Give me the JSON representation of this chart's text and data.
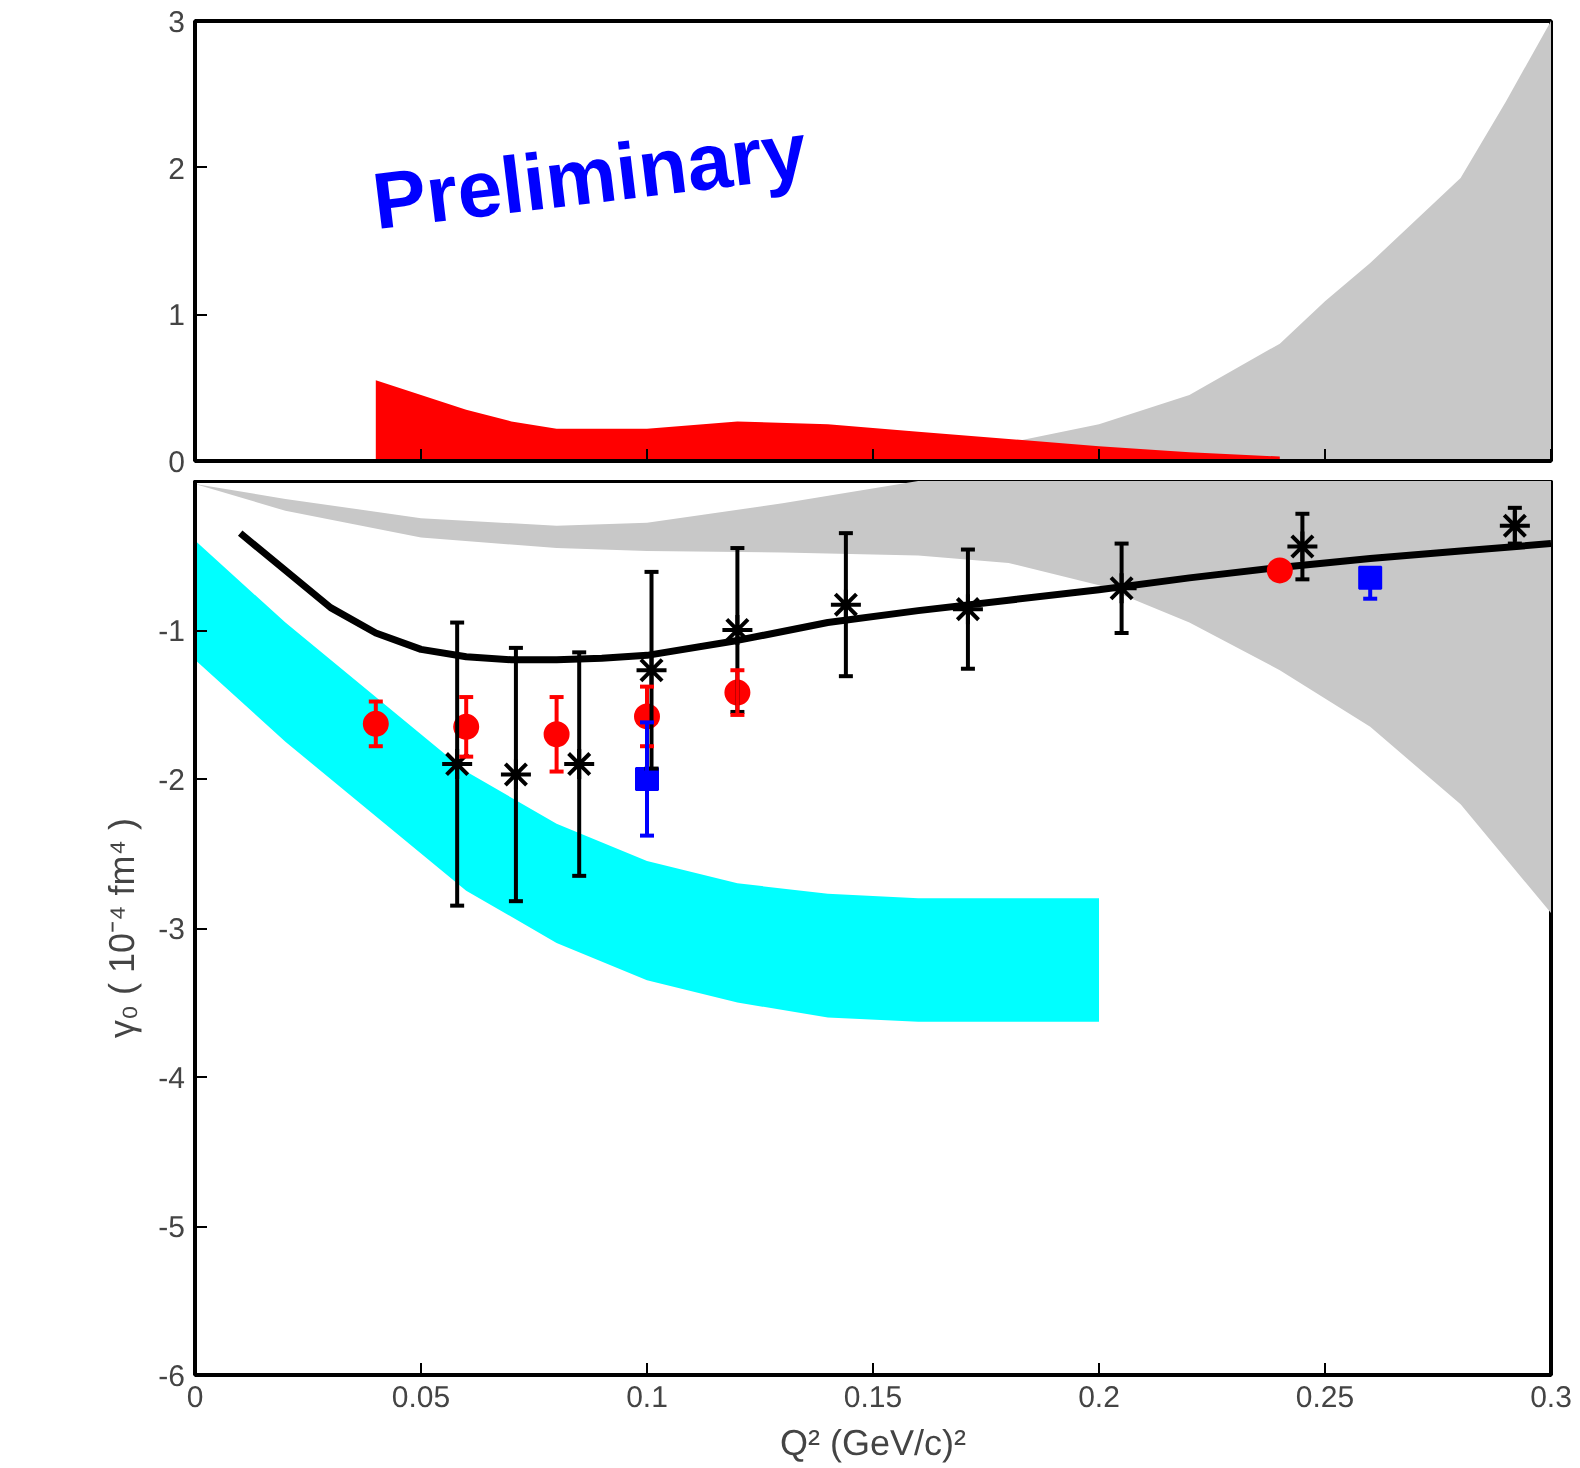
{
  "chart_data": [
    {
      "type": "area",
      "annotations": [
        "Preliminary"
      ],
      "xlim": [
        0,
        0.3
      ],
      "ylim": [
        0,
        3
      ],
      "xticks": [
        0,
        0.05,
        0.1,
        0.15,
        0.2,
        0.25,
        0.3
      ],
      "yticks": [
        0,
        1,
        2,
        3
      ],
      "tick_labels": "y",
      "grid": false,
      "series": [
        {
          "color": "#c8c8c8",
          "x": [
            0.16,
            0.2,
            0.22,
            0.24,
            0.25,
            0.26,
            0.28,
            0.29,
            0.3
          ],
          "values": [
            0,
            0.25,
            0.45,
            0.8,
            1.09,
            1.35,
            1.93,
            2.45,
            3
          ]
        },
        {
          "color": "#ff0000",
          "x": [
            0.04,
            0.05,
            0.06,
            0.07,
            0.08,
            0.1,
            0.12,
            0.14,
            0.16,
            0.18,
            0.2,
            0.22,
            0.24
          ],
          "values": [
            0.55,
            0.45,
            0.35,
            0.27,
            0.22,
            0.22,
            0.27,
            0.25,
            0.2,
            0.15,
            0.1,
            0.06,
            0.03
          ]
        }
      ]
    },
    {
      "type": "scatter",
      "xlabel": "Q² (GeV/c)²",
      "ylabel": "γ₀ ( 10⁻⁴ fm⁴ )",
      "xlim": [
        0,
        0.3
      ],
      "ylim": [
        -6,
        0
      ],
      "xticks": [
        0,
        0.05,
        0.1,
        0.15,
        0.2,
        0.25,
        0.3
      ],
      "yticks": [
        -6,
        -5,
        -4,
        -3,
        -2,
        -1
      ],
      "grid": false,
      "series": [
        {
          "type": "area",
          "color": "#c8c8c8",
          "x": [
            0,
            0.02,
            0.05,
            0.08,
            0.1,
            0.13,
            0.16,
            0.18,
            0.2,
            0.22,
            0.24,
            0.26,
            0.28,
            0.3
          ],
          "values": [
            null,
            null,
            null,
            null,
            null,
            null,
            null,
            null,
            null,
            null,
            null,
            null,
            null,
            null
          ],
          "upper": [
            -0.02,
            -0.12,
            -0.25,
            -0.3,
            -0.28,
            -0.15,
            0,
            0,
            0,
            0,
            0,
            0,
            0,
            0
          ],
          "lower": [
            -0.02,
            -0.2,
            -0.38,
            -0.45,
            -0.47,
            -0.48,
            -0.5,
            -0.55,
            -0.7,
            -0.95,
            -1.27,
            -1.65,
            -2.17,
            -2.9
          ]
        },
        {
          "type": "area",
          "color": "#00ffff",
          "x": [
            0,
            0.02,
            0.06,
            0.08,
            0.1,
            0.12,
            0.14,
            0.16,
            0.18,
            0.2
          ],
          "values": [
            null,
            null,
            null,
            null,
            null,
            null,
            null,
            null,
            null,
            null
          ],
          "upper": [
            -0.4,
            -0.95,
            -1.95,
            -2.3,
            -2.55,
            -2.7,
            -2.77,
            -2.8,
            -2.8,
            -2.8
          ],
          "lower": [
            -1.2,
            -1.75,
            -2.75,
            -3.1,
            -3.35,
            -3.5,
            -3.6,
            -3.63,
            -3.63,
            -3.63
          ]
        },
        {
          "type": "line",
          "color": "#000000",
          "marker": "none",
          "line_style": "solid",
          "x": [
            0.01,
            0.02,
            0.03,
            0.04,
            0.05,
            0.06,
            0.07,
            0.08,
            0.09,
            0.1,
            0.12,
            0.14,
            0.16,
            0.18,
            0.2,
            0.22,
            0.24,
            0.26,
            0.28,
            0.3
          ],
          "values": [
            -0.35,
            -0.6,
            -0.85,
            -1.02,
            -1.13,
            -1.18,
            -1.2,
            -1.2,
            -1.19,
            -1.17,
            -1.07,
            -0.95,
            -0.87,
            -0.8,
            -0.73,
            -0.65,
            -0.58,
            -0.52,
            -0.47,
            -0.42
          ]
        },
        {
          "color": "#000000",
          "marker": "cross",
          "x": [
            0.058,
            0.071,
            0.085,
            0.101,
            0.12,
            0.144,
            0.171,
            0.205,
            0.245,
            0.292
          ],
          "values": [
            -1.9,
            -1.97,
            -1.9,
            -1.27,
            -1.0,
            -0.83,
            -0.86,
            -0.72,
            -0.44,
            -0.3
          ],
          "errors": [
            0.95,
            0.85,
            0.75,
            0.66,
            0.55,
            0.48,
            0.4,
            0.3,
            0.22,
            0.12
          ]
        },
        {
          "color": "#ff0000",
          "marker": "circle",
          "x": [
            0.04,
            0.06,
            0.08,
            0.1,
            0.12,
            0.24
          ],
          "values": [
            -1.63,
            -1.65,
            -1.7,
            -1.58,
            -1.42,
            -0.6
          ],
          "errors": [
            0.15,
            0.2,
            0.25,
            0.2,
            0.15,
            null
          ]
        },
        {
          "color": "#0000ff",
          "marker": "square",
          "x": [
            0.1,
            0.26
          ],
          "values": [
            -2.0,
            -0.65
          ],
          "errors": [
            0.38,
            [
              -0.79,
              -0.65
            ]
          ]
        }
      ]
    }
  ]
}
